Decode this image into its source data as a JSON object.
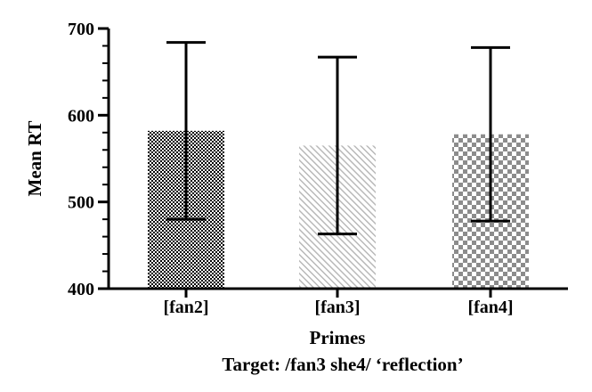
{
  "chart_data": {
    "type": "bar",
    "categories": [
      "[fan2]",
      "[fan3]",
      "[fan4]"
    ],
    "values": [
      582,
      565,
      578
    ],
    "error_bars": [
      {
        "low": 480,
        "high": 684
      },
      {
        "low": 463,
        "high": 667
      },
      {
        "low": 478,
        "high": 678
      }
    ],
    "ylim": [
      400,
      700
    ],
    "yticks": [
      "400",
      "500",
      "600",
      "700"
    ],
    "ylabel": "Mean RT",
    "xlabel": "Primes",
    "subtitle": "Target: /fan3 she4/ ‘reflection’",
    "grid": false,
    "bar_patterns": [
      "fine-checkerboard",
      "diagonal-hatch",
      "coarse-checkerboard"
    ],
    "colors": {
      "axis": "#000000",
      "checker_dark": "#000000",
      "hatch": "#b5b5b5",
      "checker_gray": "#8c8c8c"
    }
  }
}
